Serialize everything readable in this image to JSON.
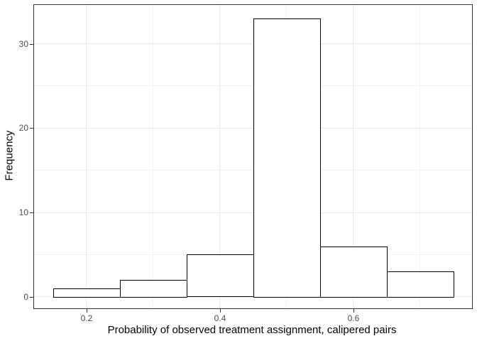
{
  "chart_data": {
    "type": "bar",
    "subtype": "histogram",
    "title": "",
    "xlabel": "Probability of observed treatment assignment, calipered pairs",
    "ylabel": "Frequency",
    "bin_edges": [
      0.15,
      0.25,
      0.35,
      0.45,
      0.55,
      0.65,
      0.75
    ],
    "counts": [
      1,
      2,
      5,
      33,
      6,
      3
    ],
    "xlim": [
      0.1213,
      0.7777
    ],
    "ylim": [
      -1.37,
      34.6
    ],
    "x_ticks": [
      {
        "value": 0.2,
        "label": "0.2"
      },
      {
        "value": 0.4,
        "label": "0.4"
      },
      {
        "value": 0.6,
        "label": "0.6"
      }
    ],
    "y_ticks": [
      {
        "value": 0,
        "label": "0"
      },
      {
        "value": 10,
        "label": "10"
      },
      {
        "value": 20,
        "label": "20"
      },
      {
        "value": 30,
        "label": "30"
      }
    ],
    "x_minor_grid": [
      0.3,
      0.5,
      0.7
    ],
    "y_minor_grid": [
      5,
      15,
      25
    ],
    "grid": true,
    "legend_position": "none",
    "colors": {
      "bar_fill": "#ffffff",
      "bar_stroke": "#000000",
      "grid_major": "#e8e8e8",
      "grid_minor": "#f2f2f2",
      "panel_border": "#333333",
      "tick_mark": "#333333",
      "tick_label": "#4d4d4d",
      "axis_title": "#000000",
      "background": "#ffffff"
    }
  }
}
